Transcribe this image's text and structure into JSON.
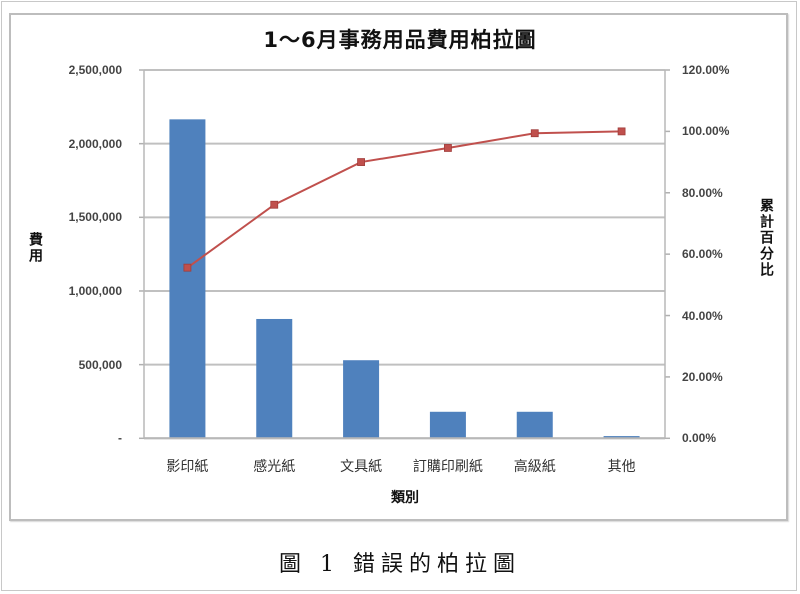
{
  "chart_data": {
    "type": "bar+line (pareto)",
    "title": "1～6月事務用品費用柏拉圖",
    "xlabel": "類別",
    "ylabel": "費用",
    "y2label": "累計百分比",
    "categories": [
      "影印紙",
      "感光紙",
      "文具紙",
      "訂購印刷紙",
      "高級紙",
      "其他"
    ],
    "series": [
      {
        "name": "費用",
        "type": "bar",
        "axis": "left",
        "color": "#4f81bd",
        "values": [
          2165000,
          810000,
          530000,
          180000,
          180000,
          15000
        ]
      },
      {
        "name": "累計百分比",
        "type": "line",
        "axis": "right",
        "color": "#c0504d",
        "marker": "square",
        "values": [
          55.6,
          76.1,
          90.0,
          94.6,
          99.4,
          100.0
        ]
      }
    ],
    "ylim": [
      0,
      2500000
    ],
    "y2lim": [
      0,
      120
    ],
    "yticks": [
      "-",
      "500,000",
      "1,000,000",
      "1,500,000",
      "2,000,000",
      "2,500,000"
    ],
    "y2ticks": [
      "0.00%",
      "20.00%",
      "40.00%",
      "60.00%",
      "80.00%",
      "100.00%",
      "120.00%"
    ],
    "grid": true,
    "legend": "none"
  },
  "caption": "圖 1 錯誤的柏拉圖"
}
